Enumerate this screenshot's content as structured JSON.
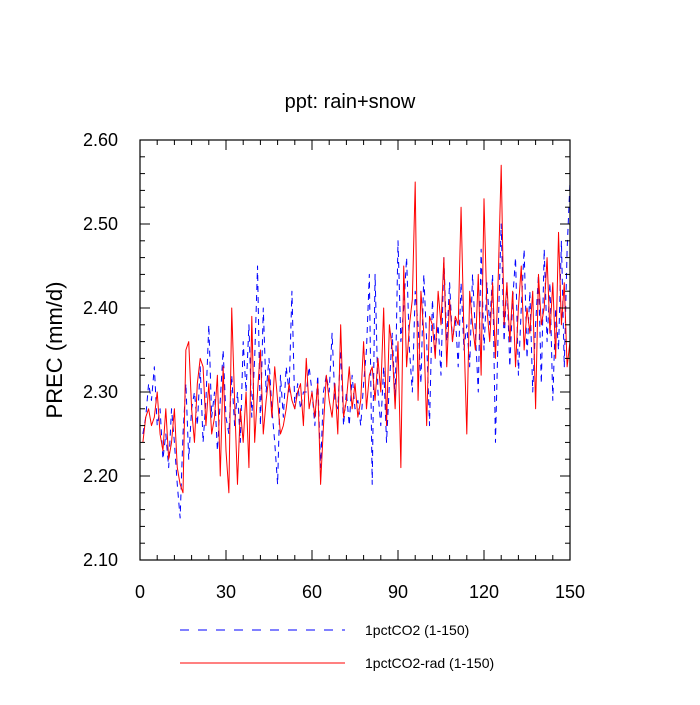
{
  "chart_data": {
    "type": "line",
    "title": "ppt: rain+snow",
    "xlabel": "",
    "ylabel": "PREC  (mm/d)",
    "xlim": [
      0,
      150
    ],
    "ylim": [
      2.1,
      2.6
    ],
    "xticks": [
      0,
      30,
      60,
      90,
      120,
      150
    ],
    "xtick_labels": [
      "0",
      "30",
      "60",
      "90",
      "120",
      "150"
    ],
    "yticks": [
      2.1,
      2.2,
      2.3,
      2.4,
      2.5,
      2.6
    ],
    "ytick_labels": [
      "2.10",
      "2.20",
      "2.30",
      "2.40",
      "2.50",
      "2.60"
    ],
    "grid": false,
    "legend_position": "bottom",
    "x": [
      1,
      2,
      3,
      4,
      5,
      6,
      7,
      8,
      9,
      10,
      11,
      12,
      13,
      14,
      15,
      16,
      17,
      18,
      19,
      20,
      21,
      22,
      23,
      24,
      25,
      26,
      27,
      28,
      29,
      30,
      31,
      32,
      33,
      34,
      35,
      36,
      37,
      38,
      39,
      40,
      41,
      42,
      43,
      44,
      45,
      46,
      47,
      48,
      49,
      50,
      51,
      52,
      53,
      54,
      55,
      56,
      57,
      58,
      59,
      60,
      61,
      62,
      63,
      64,
      65,
      66,
      67,
      68,
      69,
      70,
      71,
      72,
      73,
      74,
      75,
      76,
      77,
      78,
      79,
      80,
      81,
      82,
      83,
      84,
      85,
      86,
      87,
      88,
      89,
      90,
      91,
      92,
      93,
      94,
      95,
      96,
      97,
      98,
      99,
      100,
      101,
      102,
      103,
      104,
      105,
      106,
      107,
      108,
      109,
      110,
      111,
      112,
      113,
      114,
      115,
      116,
      117,
      118,
      119,
      120,
      121,
      122,
      123,
      124,
      125,
      126,
      127,
      128,
      129,
      130,
      131,
      132,
      133,
      134,
      135,
      136,
      137,
      138,
      139,
      140,
      141,
      142,
      143,
      144,
      145,
      146,
      147,
      148,
      149,
      150
    ],
    "series": [
      {
        "name": "1pctCO2 (1-150)",
        "color": "#0000ff",
        "style": "dashed",
        "values": [
          2.25,
          2.27,
          2.31,
          2.29,
          2.33,
          2.26,
          2.28,
          2.22,
          2.25,
          2.21,
          2.28,
          2.24,
          2.19,
          2.15,
          2.25,
          2.31,
          2.22,
          2.28,
          2.3,
          2.26,
          2.33,
          2.24,
          2.29,
          2.38,
          2.27,
          2.3,
          2.23,
          2.29,
          2.35,
          2.27,
          2.25,
          2.32,
          2.26,
          2.3,
          2.24,
          2.36,
          2.3,
          2.38,
          2.27,
          2.34,
          2.45,
          2.26,
          2.4,
          2.3,
          2.34,
          2.28,
          2.24,
          2.19,
          2.32,
          2.27,
          2.33,
          2.3,
          2.42,
          2.28,
          2.31,
          2.28,
          2.3,
          2.3,
          2.33,
          2.3,
          2.26,
          2.32,
          2.21,
          2.3,
          2.32,
          2.3,
          2.37,
          2.29,
          2.28,
          2.35,
          2.26,
          2.3,
          2.26,
          2.32,
          2.28,
          2.29,
          2.26,
          2.31,
          2.35,
          2.44,
          2.19,
          2.44,
          2.3,
          2.26,
          2.33,
          2.24,
          2.31,
          2.37,
          2.29,
          2.48,
          2.36,
          2.4,
          2.46,
          2.35,
          2.3,
          2.42,
          2.38,
          2.31,
          2.44,
          2.36,
          2.26,
          2.41,
          2.35,
          2.38,
          2.32,
          2.46,
          2.36,
          2.43,
          2.36,
          2.39,
          2.33,
          2.43,
          2.35,
          2.38,
          2.33,
          2.44,
          2.37,
          2.3,
          2.47,
          2.35,
          2.43,
          2.38,
          2.44,
          2.24,
          2.38,
          2.5,
          2.36,
          2.43,
          2.33,
          2.41,
          2.46,
          2.32,
          2.4,
          2.47,
          2.34,
          2.42,
          2.3,
          2.38,
          2.44,
          2.31,
          2.47,
          2.36,
          2.43,
          2.29,
          2.4,
          2.35,
          2.48,
          2.33,
          2.47,
          2.55
        ]
      },
      {
        "name": "1pctCO2-rad (1-150)",
        "color": "#ff0000",
        "style": "solid",
        "values": [
          2.24,
          2.27,
          2.28,
          2.26,
          2.27,
          2.3,
          2.25,
          2.23,
          2.28,
          2.22,
          2.24,
          2.28,
          2.21,
          2.19,
          2.18,
          2.35,
          2.36,
          2.28,
          2.24,
          2.31,
          2.34,
          2.33,
          2.26,
          2.31,
          2.25,
          2.27,
          2.32,
          2.2,
          2.33,
          2.23,
          2.18,
          2.4,
          2.29,
          2.19,
          2.28,
          2.24,
          2.3,
          2.21,
          2.39,
          2.24,
          2.3,
          2.35,
          2.25,
          2.29,
          2.32,
          2.27,
          2.33,
          2.29,
          2.25,
          2.26,
          2.28,
          2.31,
          2.29,
          2.28,
          2.3,
          2.31,
          2.26,
          2.34,
          2.28,
          2.3,
          2.27,
          2.31,
          2.19,
          2.26,
          2.32,
          2.29,
          2.27,
          2.31,
          2.25,
          2.38,
          2.27,
          2.29,
          2.33,
          2.28,
          2.31,
          2.27,
          2.29,
          2.36,
          2.28,
          2.32,
          2.33,
          2.29,
          2.34,
          2.3,
          2.4,
          2.26,
          2.38,
          2.35,
          2.28,
          2.36,
          2.21,
          2.45,
          2.33,
          2.38,
          2.41,
          2.55,
          2.29,
          2.42,
          2.37,
          2.26,
          2.39,
          2.38,
          2.34,
          2.42,
          2.38,
          2.46,
          2.33,
          2.41,
          2.36,
          2.39,
          2.38,
          2.52,
          2.37,
          2.25,
          2.42,
          2.38,
          2.35,
          2.44,
          2.32,
          2.53,
          2.4,
          2.36,
          2.43,
          2.34,
          2.44,
          2.57,
          2.38,
          2.43,
          2.36,
          2.42,
          2.33,
          2.4,
          2.45,
          2.35,
          2.4,
          2.37,
          2.42,
          2.28,
          2.44,
          2.38,
          2.4,
          2.46,
          2.37,
          2.43,
          2.34,
          2.49,
          2.38,
          2.43,
          2.33,
          2.36
        ]
      }
    ]
  }
}
